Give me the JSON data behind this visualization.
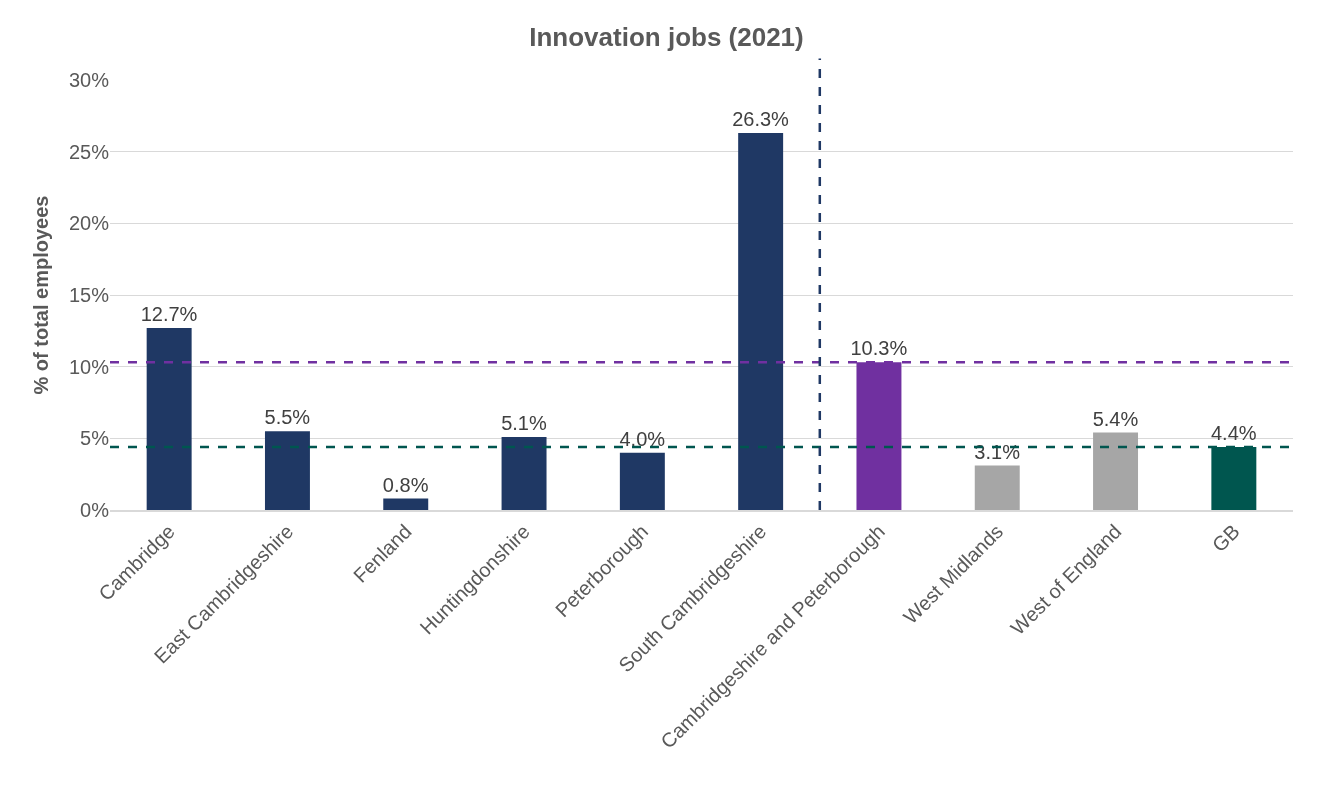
{
  "chart_data": {
    "type": "bar",
    "title": "Innovation jobs (2021)",
    "ylabel": "% of total employees",
    "categories": [
      "Cambridge",
      "East Cambridgeshire",
      "Fenland",
      "Huntingdonshire",
      "Peterborough",
      "South Cambridgeshire",
      "Cambridgeshire and Peterborough",
      "West Midlands",
      "West of England",
      "GB"
    ],
    "values": [
      12.7,
      5.5,
      0.8,
      5.1,
      4.0,
      26.3,
      10.3,
      3.1,
      5.4,
      4.4
    ],
    "value_labels": [
      "12.7%",
      "5.5%",
      "0.8%",
      "5.1%",
      "4.0%",
      "26.3%",
      "10.3%",
      "3.1%",
      "5.4%",
      "4.4%"
    ],
    "colors": [
      "#1f3864",
      "#1f3864",
      "#1f3864",
      "#1f3864",
      "#1f3864",
      "#1f3864",
      "#7030a0",
      "#a6a6a6",
      "#a6a6a6",
      "#00564f"
    ],
    "ylim": [
      0,
      30
    ],
    "yticks": [
      {
        "value": 0,
        "label": "0%"
      },
      {
        "value": 5,
        "label": "5%"
      },
      {
        "value": 10,
        "label": "10%"
      },
      {
        "value": 15,
        "label": "15%"
      },
      {
        "value": 20,
        "label": "20%"
      },
      {
        "value": 25,
        "label": "25%"
      },
      {
        "value": 30,
        "label": "30%"
      }
    ],
    "grid": "y",
    "ref_lines": [
      {
        "axis": "y",
        "value": 10.3,
        "color": "#7030a0",
        "line_style": "dashed"
      },
      {
        "axis": "y",
        "value": 4.4,
        "color": "#00564f",
        "line_style": "dashed"
      },
      {
        "axis": "x",
        "value": "Cambridgeshire and Peterborough",
        "color": "#1f3864",
        "line_style": "dashed"
      }
    ]
  }
}
